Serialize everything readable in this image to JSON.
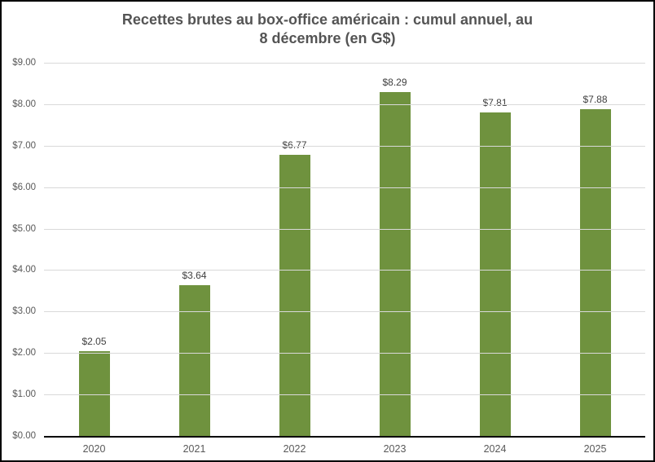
{
  "chart_data": {
    "type": "bar",
    "title": "Recettes brutes au box-office américain : cumul annuel, au 8 décembre (en G$)",
    "title_lines": [
      "Recettes brutes au box-office américain : cumul annuel, au",
      "8 décembre (en G$)"
    ],
    "categories": [
      "2020",
      "2021",
      "2022",
      "2023",
      "2024",
      "2025"
    ],
    "values": [
      2.05,
      3.64,
      6.77,
      8.29,
      7.81,
      7.88
    ],
    "value_labels": [
      "$2.05",
      "$3.64",
      "$6.77",
      "$8.29",
      "$7.81",
      "$7.88"
    ],
    "y_ticks": [
      "$0.00",
      "$1.00",
      "$2.00",
      "$3.00",
      "$4.00",
      "$5.00",
      "$6.00",
      "$7.00",
      "$8.00",
      "$9.00"
    ],
    "ylim": [
      0,
      9
    ],
    "xlabel": "",
    "ylabel": "",
    "grid": true,
    "legend": false,
    "colors": {
      "bar": "#6F923E",
      "gridline": "#D9D9D9",
      "axis_line": "#000000",
      "title": "#545454",
      "tick_label": "#595959",
      "data_label": "#404040",
      "background": "#FFFFFF",
      "frame_border": "#000000"
    }
  }
}
